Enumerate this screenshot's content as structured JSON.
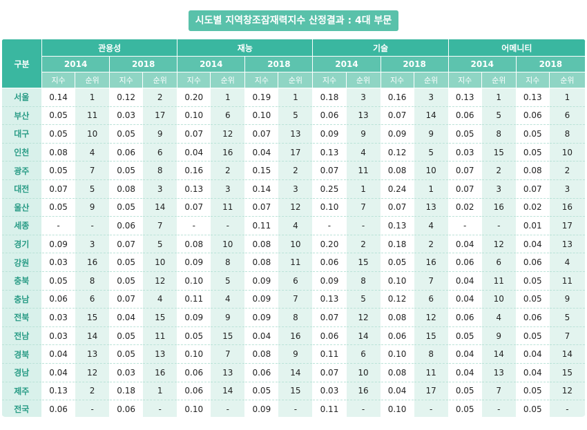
{
  "title": "시도별 지역창조잠재력지수 산정결과 : 4대 부문",
  "header": {
    "row_label": "구분",
    "categories": [
      "관용성",
      "재능",
      "기술",
      "어메니티"
    ],
    "years": [
      "2014",
      "2018"
    ],
    "sub": [
      "지수",
      "순위"
    ]
  },
  "rows": [
    {
      "region": "서울",
      "cells": [
        "0.14",
        "1",
        "0.12",
        "2",
        "0.20",
        "1",
        "0.19",
        "1",
        "0.18",
        "3",
        "0.16",
        "3",
        "0.13",
        "1",
        "0.13",
        "1"
      ]
    },
    {
      "region": "부산",
      "cells": [
        "0.05",
        "11",
        "0.03",
        "17",
        "0.10",
        "6",
        "0.10",
        "5",
        "0.06",
        "13",
        "0.07",
        "14",
        "0.06",
        "5",
        "0.06",
        "6"
      ]
    },
    {
      "region": "대구",
      "cells": [
        "0.05",
        "10",
        "0.05",
        "9",
        "0.07",
        "12",
        "0.07",
        "13",
        "0.09",
        "9",
        "0.09",
        "9",
        "0.05",
        "8",
        "0.05",
        "8"
      ]
    },
    {
      "region": "인천",
      "cells": [
        "0.08",
        "4",
        "0.06",
        "6",
        "0.04",
        "16",
        "0.04",
        "17",
        "0.13",
        "4",
        "0.12",
        "5",
        "0.03",
        "15",
        "0.05",
        "10"
      ]
    },
    {
      "region": "광주",
      "cells": [
        "0.05",
        "7",
        "0.05",
        "8",
        "0.16",
        "2",
        "0.15",
        "2",
        "0.07",
        "11",
        "0.08",
        "10",
        "0.07",
        "2",
        "0.08",
        "2"
      ]
    },
    {
      "region": "대전",
      "cells": [
        "0.07",
        "5",
        "0.08",
        "3",
        "0.13",
        "3",
        "0.14",
        "3",
        "0.25",
        "1",
        "0.24",
        "1",
        "0.07",
        "3",
        "0.07",
        "3"
      ]
    },
    {
      "region": "울산",
      "cells": [
        "0.05",
        "9",
        "0.05",
        "14",
        "0.07",
        "11",
        "0.07",
        "12",
        "0.10",
        "7",
        "0.07",
        "13",
        "0.02",
        "16",
        "0.02",
        "16"
      ]
    },
    {
      "region": "세종",
      "cells": [
        "-",
        "-",
        "0.06",
        "7",
        "-",
        "-",
        "0.11",
        "4",
        "-",
        "-",
        "0.13",
        "4",
        "-",
        "-",
        "0.01",
        "17"
      ]
    },
    {
      "region": "경기",
      "cells": [
        "0.09",
        "3",
        "0.07",
        "5",
        "0.08",
        "10",
        "0.08",
        "10",
        "0.20",
        "2",
        "0.18",
        "2",
        "0.04",
        "12",
        "0.04",
        "13"
      ]
    },
    {
      "region": "강원",
      "cells": [
        "0.03",
        "16",
        "0.05",
        "10",
        "0.09",
        "8",
        "0.08",
        "11",
        "0.06",
        "15",
        "0.05",
        "16",
        "0.06",
        "6",
        "0.06",
        "4"
      ]
    },
    {
      "region": "충북",
      "cells": [
        "0.05",
        "8",
        "0.05",
        "12",
        "0.10",
        "5",
        "0.09",
        "6",
        "0.09",
        "8",
        "0.10",
        "7",
        "0.04",
        "11",
        "0.05",
        "11"
      ]
    },
    {
      "region": "충남",
      "cells": [
        "0.06",
        "6",
        "0.07",
        "4",
        "0.11",
        "4",
        "0.09",
        "7",
        "0.13",
        "5",
        "0.12",
        "6",
        "0.04",
        "10",
        "0.05",
        "9"
      ]
    },
    {
      "region": "전북",
      "cells": [
        "0.03",
        "15",
        "0.04",
        "15",
        "0.09",
        "9",
        "0.09",
        "8",
        "0.07",
        "12",
        "0.08",
        "12",
        "0.06",
        "4",
        "0.06",
        "5"
      ]
    },
    {
      "region": "전남",
      "cells": [
        "0.03",
        "14",
        "0.05",
        "11",
        "0.05",
        "15",
        "0.04",
        "16",
        "0.06",
        "14",
        "0.06",
        "15",
        "0.05",
        "9",
        "0.05",
        "7"
      ]
    },
    {
      "region": "경북",
      "cells": [
        "0.04",
        "13",
        "0.05",
        "13",
        "0.10",
        "7",
        "0.08",
        "9",
        "0.11",
        "6",
        "0.10",
        "8",
        "0.04",
        "14",
        "0.04",
        "14"
      ]
    },
    {
      "region": "경남",
      "cells": [
        "0.04",
        "12",
        "0.03",
        "16",
        "0.06",
        "13",
        "0.06",
        "14",
        "0.07",
        "10",
        "0.08",
        "11",
        "0.04",
        "13",
        "0.04",
        "15"
      ]
    },
    {
      "region": "제주",
      "cells": [
        "0.13",
        "2",
        "0.18",
        "1",
        "0.06",
        "14",
        "0.05",
        "15",
        "0.03",
        "16",
        "0.04",
        "17",
        "0.05",
        "7",
        "0.05",
        "12"
      ]
    },
    {
      "region": "전국",
      "cells": [
        "0.06",
        "-",
        "0.06",
        "-",
        "0.10",
        "-",
        "0.09",
        "-",
        "0.11",
        "-",
        "0.10",
        "-",
        "0.05",
        "-",
        "0.05",
        "-"
      ]
    }
  ]
}
